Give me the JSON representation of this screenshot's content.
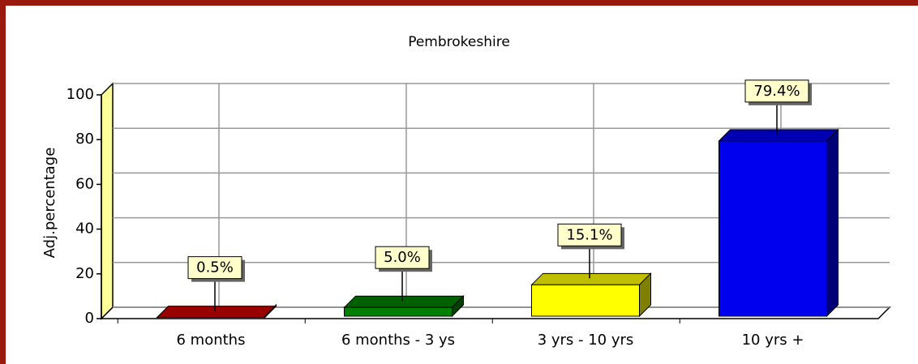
{
  "chart_data": {
    "type": "bar3d",
    "title": "Pembrokeshire",
    "y_label": "Adj.percentage",
    "categories": [
      "6 months",
      "6 months - 3 ys",
      "3 yrs - 10 yrs",
      "10 yrs +"
    ],
    "values": [
      0.5,
      5.0,
      15.1,
      79.4
    ],
    "value_labels": [
      "0.5%",
      "5.0%",
      "15.1%",
      "79.4%"
    ],
    "colors": [
      "#cc0000",
      "#008000",
      "#ffff00",
      "#0000ee"
    ],
    "ylim": [
      0,
      100
    ],
    "yticks": [
      0,
      20,
      40,
      60,
      80,
      100
    ],
    "grid": true
  }
}
